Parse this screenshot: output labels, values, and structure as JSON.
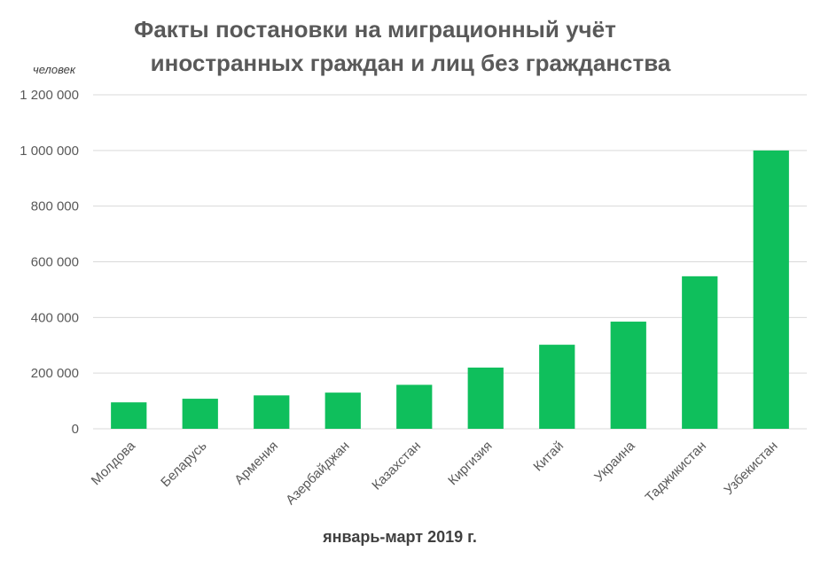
{
  "chart_data": {
    "type": "bar",
    "title_lines": [
      "Факты постановки на миграционный учёт",
      "иностранных граждан и лиц без гражданства"
    ],
    "ylabel": "человек",
    "xlabel": "январь-март 2019 г.",
    "categories": [
      "Молдова",
      "Беларусь",
      "Армения",
      "Азербайджан",
      "Казахстан",
      "Киргизия",
      "Китай",
      "Украина",
      "Таджикистан",
      "Узбекистан"
    ],
    "values": [
      95000,
      108000,
      120000,
      130000,
      158000,
      220000,
      302000,
      385000,
      548000,
      1000000
    ],
    "ylim": [
      0,
      1200000
    ],
    "yticks": [
      0,
      200000,
      400000,
      600000,
      800000,
      1000000,
      1200000
    ],
    "ytick_labels": [
      "0",
      "200 000",
      "400 000",
      "600 000",
      "800 000",
      "1 000 000",
      "1 200 000"
    ],
    "grid": true,
    "colors": {
      "bar": "#0FBF5C",
      "grid": "#D9D9D9",
      "text": "#595959"
    }
  }
}
